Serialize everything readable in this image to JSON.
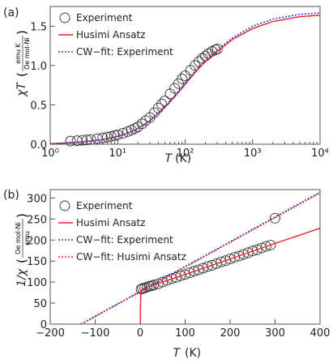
{
  "chart_data": [
    {
      "type": "scatter",
      "panel_label": "(a)",
      "x_scale": "log",
      "xlim": [
        1,
        10000
      ],
      "ylim": [
        0,
        1.75
      ],
      "xlabel_italic": "T",
      "xlabel_unit": "(K)",
      "ylabel_main": "χT",
      "ylabel_unit_num": "emu K",
      "ylabel_unit_den": "Oe mol-Ni",
      "x_ticks": [
        1,
        10,
        100,
        1000,
        10000
      ],
      "x_tick_labels": [
        "10⁰",
        "10¹",
        "10²",
        "10³",
        "10⁴"
      ],
      "y_ticks": [
        0,
        0.5,
        1.0,
        1.5
      ],
      "y_tick_labels": [
        "0.0",
        "0.5",
        "1.0",
        "1.5"
      ],
      "legend": [
        "Experiment",
        "Husimi Ansatz",
        "CW−fit: Experiment"
      ],
      "legend_position": "top-left",
      "series": [
        {
          "name": "Experiment",
          "style": "open-circles",
          "x": [
            2,
            2.5,
            3,
            3.5,
            4,
            5,
            6,
            7,
            8,
            9,
            10,
            12,
            14,
            16,
            18,
            20,
            23,
            26,
            30,
            35,
            40,
            45,
            50,
            60,
            70,
            80,
            90,
            100,
            120,
            140,
            160,
            180,
            200,
            220,
            250,
            280,
            300
          ],
          "y": [
            0.04,
            0.045,
            0.05,
            0.055,
            0.06,
            0.07,
            0.08,
            0.09,
            0.1,
            0.11,
            0.12,
            0.14,
            0.16,
            0.18,
            0.2,
            0.22,
            0.26,
            0.3,
            0.34,
            0.4,
            0.46,
            0.51,
            0.55,
            0.64,
            0.71,
            0.77,
            0.83,
            0.87,
            0.94,
            1.0,
            1.05,
            1.09,
            1.12,
            1.15,
            1.18,
            1.2,
            1.21
          ]
        },
        {
          "name": "Husimi Ansatz",
          "style": "solid",
          "color": "#e8202a",
          "x": [
            1,
            2,
            3,
            5,
            7,
            10,
            15,
            20,
            30,
            50,
            70,
            100,
            150,
            200,
            300,
            500,
            1000,
            2000,
            5000,
            10000
          ],
          "y": [
            0.005,
            0.02,
            0.03,
            0.05,
            0.07,
            0.1,
            0.15,
            0.2,
            0.3,
            0.47,
            0.6,
            0.76,
            0.94,
            1.05,
            1.18,
            1.33,
            1.47,
            1.56,
            1.62,
            1.64
          ]
        },
        {
          "name": "CW−fit: Experiment",
          "style": "dotted",
          "color": "#2a3fe0",
          "x": [
            1,
            2,
            3,
            5,
            7,
            10,
            15,
            20,
            30,
            50,
            70,
            100,
            150,
            200,
            300,
            500,
            1000,
            2000,
            5000,
            10000
          ],
          "y": [
            0.005,
            0.02,
            0.03,
            0.05,
            0.07,
            0.1,
            0.15,
            0.2,
            0.3,
            0.48,
            0.61,
            0.77,
            0.96,
            1.07,
            1.2,
            1.35,
            1.5,
            1.59,
            1.65,
            1.67
          ]
        }
      ]
    },
    {
      "type": "scatter",
      "panel_label": "(b)",
      "x_scale": "linear",
      "xlim": [
        -200,
        400
      ],
      "ylim": [
        0,
        320
      ],
      "xlabel_italic": "T",
      "xlabel_unit": "(K)",
      "ylabel_main": "1/χ",
      "ylabel_unit_num": "Oe mol-Ni",
      "ylabel_unit_den": "emu",
      "x_ticks": [
        -200,
        -100,
        0,
        100,
        200,
        300,
        400
      ],
      "x_tick_labels": [
        "−200",
        "−100",
        "0",
        "100",
        "200",
        "300",
        "400"
      ],
      "y_ticks": [
        0,
        50,
        100,
        150,
        200,
        250,
        300
      ],
      "y_tick_labels": [
        "0",
        "50",
        "100",
        "150",
        "200",
        "250",
        "300"
      ],
      "legend": [
        "Experiment",
        "Husimi Ansatz",
        "CW−fit: Experiment",
        "CW−fit: Husimi Ansatz"
      ],
      "legend_position": "top-left",
      "series": [
        {
          "name": "Experiment",
          "style": "open-circles",
          "x": [
            2,
            5,
            10,
            15,
            20,
            25,
            30,
            40,
            50,
            60,
            70,
            80,
            90,
            100,
            110,
            120,
            130,
            140,
            150,
            160,
            170,
            180,
            190,
            200,
            210,
            220,
            230,
            240,
            250,
            260,
            270,
            280,
            290,
            300
          ],
          "y": [
            83,
            85,
            86,
            88,
            90,
            91,
            93,
            96,
            100,
            104,
            108,
            111,
            115,
            118,
            122,
            126,
            129,
            133,
            137,
            140,
            144,
            148,
            151,
            155,
            159,
            162,
            166,
            170,
            174,
            177,
            181,
            185,
            188,
            252
          ]
        },
        {
          "name": "Husimi Ansatz",
          "style": "solid",
          "color": "#e8202a",
          "x": [
            0.3,
            0.6,
            1,
            1.5,
            2,
            3,
            5,
            10,
            20,
            50,
            100,
            200,
            300,
            400
          ],
          "y": [
            0,
            30,
            60,
            72,
            78,
            81,
            83,
            86,
            90,
            100,
            118,
            155,
            192,
            228
          ]
        },
        {
          "name": "CW−fit: Experiment",
          "style": "dotted",
          "color": "#2a3fe0",
          "x": [
            -132,
            400
          ],
          "y": [
            0,
            314
          ]
        },
        {
          "name": "CW−fit: Husimi Ansatz",
          "style": "dotted",
          "color": "#e8202a",
          "x": [
            -130,
            400
          ],
          "y": [
            0,
            312
          ]
        }
      ]
    }
  ]
}
